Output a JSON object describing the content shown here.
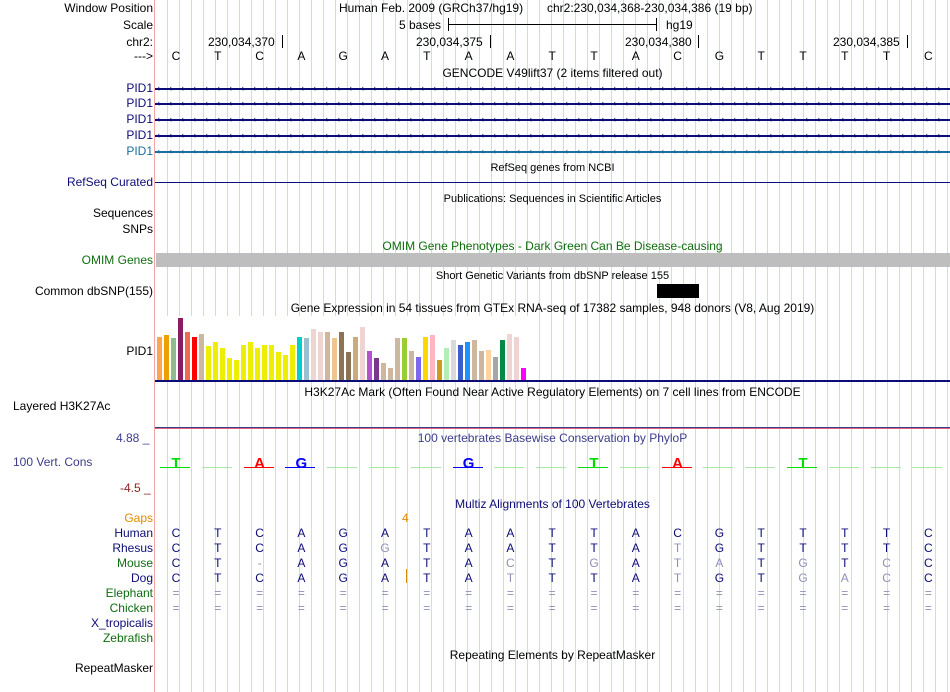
{
  "header": {
    "window_position_label": "Window Position",
    "assembly": "Human Feb. 2009 (GRCh37/hg19)",
    "position": "chr2:230,034,368-230,034,386 (19 bp)",
    "scale_label": "Scale",
    "scale_text": "5 bases",
    "scale_db": "hg19",
    "chrom_label": "chr2:",
    "strand_label": "--->",
    "coords": [
      "230,034,370",
      "230,034,375",
      "230,034,380",
      "230,034,385"
    ],
    "bases": [
      "C",
      "T",
      "C",
      "A",
      "G",
      "A",
      "T",
      "A",
      "A",
      "T",
      "T",
      "A",
      "C",
      "G",
      "T",
      "T",
      "T",
      "T",
      "C"
    ]
  },
  "gencode": {
    "title": "GENCODE V49lift37 (2 items filtered out)",
    "items": [
      {
        "label": "PID1",
        "color": "#0c0c78"
      },
      {
        "label": "PID1",
        "color": "#0c0c78"
      },
      {
        "label": "PID1",
        "color": "#0c0c78"
      },
      {
        "label": "PID1",
        "color": "#0c0c78"
      },
      {
        "label": "PID1",
        "color": "#1a6ea0"
      }
    ]
  },
  "refseq": {
    "title": "RefSeq genes from NCBI",
    "label": "RefSeq Curated",
    "color": "#0c0c78"
  },
  "publications": {
    "title": "Publications: Sequences in Scientific Articles",
    "label_sequences": "Sequences",
    "label_snps": "SNPs"
  },
  "omim": {
    "title": "OMIM Gene Phenotypes - Dark Green Can Be Disease-causing",
    "label": "OMIM Genes",
    "color": "#0e6e0e",
    "bar_color": "#bebebe"
  },
  "dbsnp": {
    "title": "Short Genetic Variants from dbSNP release 155",
    "label": "Common dbSNP(155)"
  },
  "gtex": {
    "title": "Gene Expression in 54 tissues from GTEx RNA-seq of 17382 samples, 948 donors (V8, Aug 2019)",
    "label": "PID1",
    "bars": [
      {
        "color": "#ffa54f",
        "level": 0.7
      },
      {
        "color": "#eea000",
        "level": 0.72
      },
      {
        "color": "#8fbc8f",
        "level": 0.68
      },
      {
        "color": "#8b1c62",
        "level": 1.0
      },
      {
        "color": "#ee6a50",
        "level": 0.77
      },
      {
        "color": "#ff0000",
        "level": 0.69
      },
      {
        "color": "#cdb79e",
        "level": 0.75
      },
      {
        "color": "#eeee00",
        "level": 0.55
      },
      {
        "color": "#eeee00",
        "level": 0.62
      },
      {
        "color": "#eeee00",
        "level": 0.52
      },
      {
        "color": "#eeee00",
        "level": 0.35
      },
      {
        "color": "#eeee00",
        "level": 0.33
      },
      {
        "color": "#eeee00",
        "level": 0.57
      },
      {
        "color": "#eeee00",
        "level": 0.62
      },
      {
        "color": "#eeee00",
        "level": 0.52
      },
      {
        "color": "#eeee00",
        "level": 0.57
      },
      {
        "color": "#eeee00",
        "level": 0.57
      },
      {
        "color": "#eeee00",
        "level": 0.45
      },
      {
        "color": "#eeee00",
        "level": 0.4
      },
      {
        "color": "#eeee00",
        "level": 0.57
      },
      {
        "color": "#00cdcd",
        "level": 0.7
      },
      {
        "color": "#9ac0cd",
        "level": 0.67
      },
      {
        "color": "#eed5d2",
        "level": 0.82
      },
      {
        "color": "#eed5d2",
        "level": 0.77
      },
      {
        "color": "#cdb79e",
        "level": 0.77
      },
      {
        "color": "#eec591",
        "level": 0.67
      },
      {
        "color": "#8b7355",
        "level": 0.77
      },
      {
        "color": "#8b7355",
        "level": 0.45
      },
      {
        "color": "#cdaa7d",
        "level": 0.7
      },
      {
        "color": "#eed5d2",
        "level": 0.85
      },
      {
        "color": "#b452cd",
        "level": 0.47
      },
      {
        "color": "#7a378b",
        "level": 0.35
      },
      {
        "color": "#cdb79e",
        "level": 0.27
      },
      {
        "color": "#cdb79e",
        "level": 0.2
      },
      {
        "color": "#cdb79e",
        "level": 0.67
      },
      {
        "color": "#9acd32",
        "level": 0.67
      },
      {
        "color": "#cdb79e",
        "level": 0.47
      },
      {
        "color": "#7b68ee",
        "level": 0.37
      },
      {
        "color": "#ffd700",
        "level": 0.7
      },
      {
        "color": "#ffb6c1",
        "level": 0.72
      },
      {
        "color": "#cd9b1d",
        "level": 0.32
      },
      {
        "color": "#b4eeb4",
        "level": 0.52
      },
      {
        "color": "#d9d9d9",
        "level": 0.65
      },
      {
        "color": "#3a5fcd",
        "level": 0.57
      },
      {
        "color": "#1e90ff",
        "level": 0.62
      },
      {
        "color": "#cdb79e",
        "level": 0.64
      },
      {
        "color": "#cdb79e",
        "level": 0.47
      },
      {
        "color": "#ffd39b",
        "level": 0.49
      },
      {
        "color": "#a6a6a6",
        "level": 0.37
      },
      {
        "color": "#008b45",
        "level": 0.65
      },
      {
        "color": "#eed5d2",
        "level": 0.75
      },
      {
        "color": "#eed5d2",
        "level": 0.7
      },
      {
        "color": "#ff00ff",
        "level": 0.2
      }
    ]
  },
  "h3k27ac": {
    "title": "H3K27Ac Mark (Often Found Near Active Regulatory Elements) on 7 cell lines from ENCODE",
    "label": "Layered H3K27Ac"
  },
  "phylop": {
    "title": "100 vertebrates Basewise Conservation by PhyloP",
    "label": "100 Vert. Cons",
    "max_label": "4.88 _",
    "min_label": "-4.5 _",
    "color": "#3c3c8c",
    "min_color": "#8b2323",
    "logo": [
      "T",
      "",
      "A",
      "G",
      "",
      "",
      "",
      "G",
      "",
      "",
      "T",
      "",
      "A",
      "",
      "",
      "T",
      "",
      "",
      ""
    ]
  },
  "multiz": {
    "title": "Multiz Alignments of 100 Vertebrates",
    "gaps_label": "Gaps",
    "gaps_value": "4",
    "gaps_color": "#e08a00",
    "species": [
      {
        "name": "Human",
        "color": "#0c0c78",
        "seq": [
          "C",
          "T",
          "C",
          "A",
          "G",
          "A",
          "T",
          "A",
          "A",
          "T",
          "T",
          "A",
          "C",
          "G",
          "T",
          "T",
          "T",
          "T",
          "C"
        ],
        "dim": []
      },
      {
        "name": "Rhesus",
        "color": "#0c0c78",
        "seq": [
          "C",
          "T",
          "C",
          "A",
          "G",
          "G",
          "T",
          "A",
          "A",
          "T",
          "T",
          "A",
          "T",
          "G",
          "T",
          "T",
          "T",
          "T",
          "C"
        ],
        "dim": [
          5,
          12
        ]
      },
      {
        "name": "Mouse",
        "color": "#0e6e0e",
        "seq": [
          "C",
          "T",
          "-",
          "A",
          "G",
          "A",
          "T",
          "A",
          "C",
          "T",
          "G",
          "A",
          "T",
          "A",
          "T",
          "G",
          "T",
          "C",
          "C"
        ],
        "dim": [
          2,
          8,
          10,
          12,
          13,
          15,
          17
        ]
      },
      {
        "name": "Dog",
        "color": "#0c0c78",
        "seq": [
          "C",
          "T",
          "C",
          "A",
          "G",
          "A",
          "T",
          "A",
          "T",
          "T",
          "T",
          "A",
          "T",
          "G",
          "T",
          "G",
          "A",
          "C",
          "C"
        ],
        "dim": [
          8,
          12,
          15,
          16,
          17
        ]
      },
      {
        "name": "Elephant",
        "color": "#0e6e0e",
        "seq": [
          "=",
          "=",
          "=",
          "=",
          "=",
          "=",
          "=",
          "=",
          "=",
          "=",
          "=",
          "=",
          "=",
          "=",
          "=",
          "=",
          "=",
          "=",
          "="
        ],
        "dim": []
      },
      {
        "name": "Chicken",
        "color": "#0e6e0e",
        "seq": [
          "=",
          "=",
          "=",
          "=",
          "=",
          "=",
          "=",
          "=",
          "=",
          "=",
          "=",
          "=",
          "=",
          "=",
          "=",
          "=",
          "=",
          "=",
          "="
        ],
        "dim": []
      },
      {
        "name": "X_tropicalis",
        "color": "#0c0c78",
        "seq": [],
        "dim": []
      },
      {
        "name": "Zebrafish",
        "color": "#0e6e0e",
        "seq": [],
        "dim": []
      }
    ]
  },
  "repeatmasker": {
    "title": "Repeating Elements by RepeatMasker",
    "label": "RepeatMasker"
  }
}
